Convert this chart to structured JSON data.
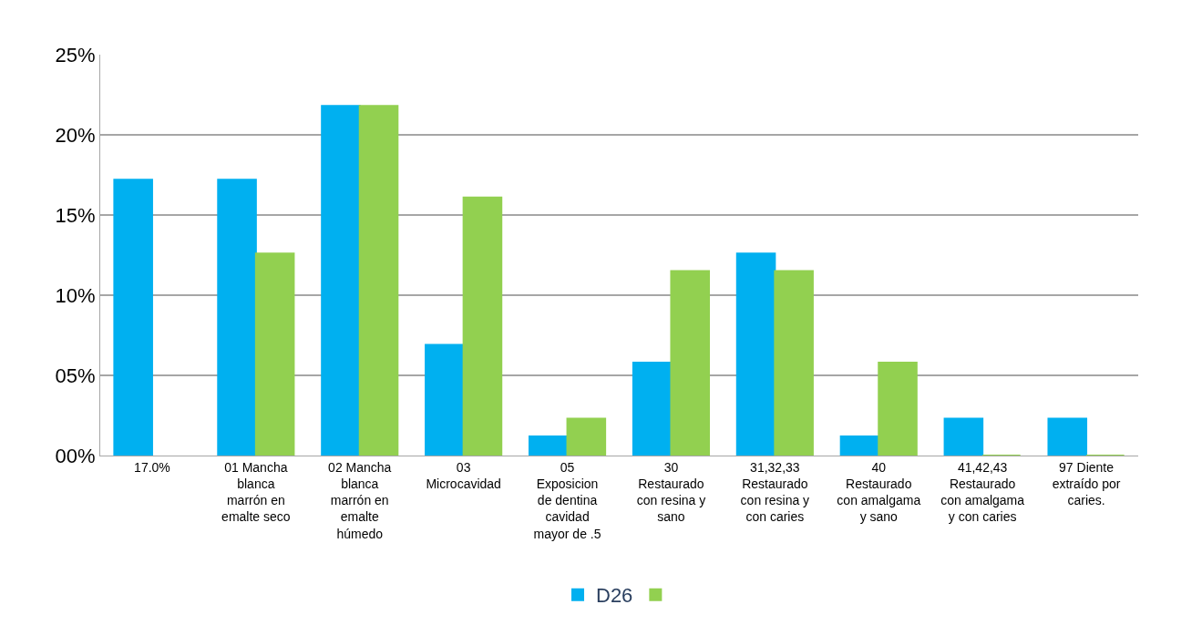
{
  "chart_data": {
    "type": "bar",
    "categories": [
      "17.0%",
      "01 Mancha blanca marrón en emalte seco",
      "02 Mancha blanca marrón en emalte húmedo",
      "03 Microcavidad",
      "05 Exposicion de dentina cavidad mayor de .5",
      "30 Restaurado con resina y sano",
      "31,32,33 Restaurado con resina y con caries",
      "40 Restaurado con amalgama y sano",
      "41,42,43 Restaurado con amalgama y con caries",
      "97 Diente extraído por caries."
    ],
    "series": [
      {
        "name": "D26",
        "color": "#00b0f0",
        "values": [
          17.2,
          17.2,
          21.8,
          6.9,
          1.2,
          5.8,
          12.6,
          1.2,
          2.3,
          2.3
        ]
      },
      {
        "color": "#92d050",
        "values": [
          null,
          12.6,
          21.8,
          16.1,
          2.3,
          11.5,
          11.5,
          5.8,
          0,
          0
        ]
      }
    ],
    "ylim": [
      0,
      25
    ],
    "yticks": [
      {
        "value": 0,
        "label": "00%"
      },
      {
        "value": 5,
        "label": "05%"
      },
      {
        "value": 10,
        "label": "10%"
      },
      {
        "value": 15,
        "label": "15%"
      },
      {
        "value": 20,
        "label": "20%"
      },
      {
        "value": 25,
        "label": "25%"
      }
    ],
    "grid": "y",
    "legend": "bottom"
  }
}
